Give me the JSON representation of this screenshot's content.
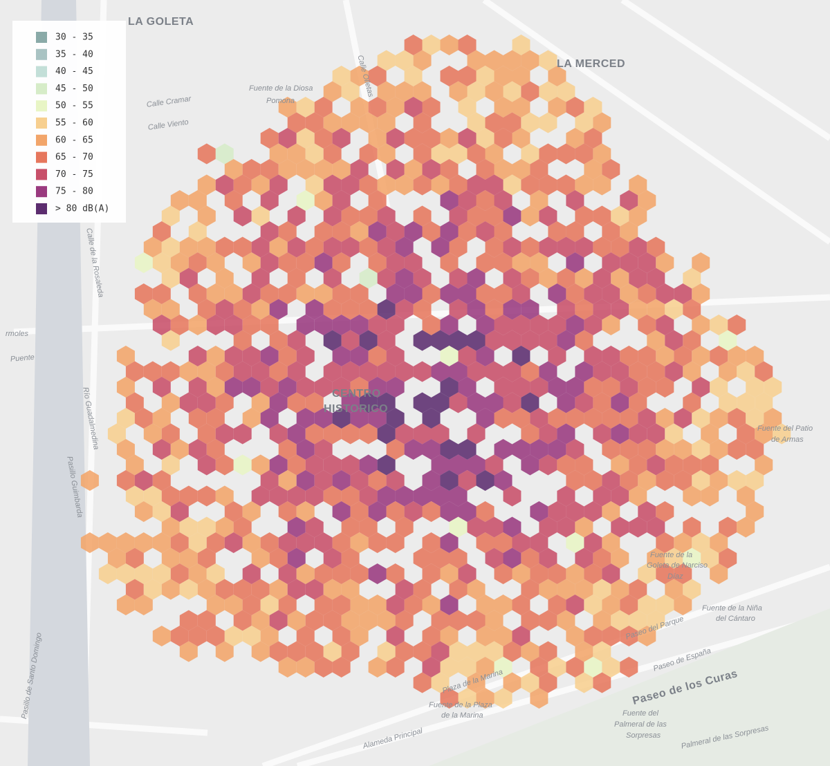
{
  "legend": {
    "items": [
      {
        "label": "30 - 35",
        "color": "#8aaaa8"
      },
      {
        "label": "35 - 40",
        "color": "#a9c3c3"
      },
      {
        "label": "40 - 45",
        "color": "#c3dfd8"
      },
      {
        "label": "45 - 50",
        "color": "#d6ecc8"
      },
      {
        "label": "50 - 55",
        "color": "#e8f5c5"
      },
      {
        "label": "55 - 60",
        "color": "#f7cf8f"
      },
      {
        "label": "60 - 65",
        "color": "#f2a56a"
      },
      {
        "label": "65 - 70",
        "color": "#e6775d"
      },
      {
        "label": "70 - 75",
        "color": "#c8506a"
      },
      {
        "label": "75 - 80",
        "color": "#9a3a7f"
      },
      {
        "label": "> 80 dB(A)",
        "color": "#5c2d6f"
      }
    ]
  },
  "map": {
    "labels": [
      "LA GOLETA",
      "LA MERCED",
      "CENTRO",
      "HISTORICO",
      "Fuente de la Diosa",
      "Pomona",
      "Calle Cramar",
      "Calle Viento",
      "Calle Olletas",
      "Fuente del Patio",
      "de Armas",
      "Fuente de la",
      "Goleta de Narciso",
      "Díaz",
      "Fuente de la Niña",
      "del Cántaro",
      "Paseo del Parque",
      "Paseo de España",
      "Paseo de los Curas",
      "Fuente del",
      "Palmeral de las",
      "Sorpresas",
      "Palmeral de las Sorpresas",
      "Plaza de la Marina",
      "Fuente de la Plaza",
      "de la Marina",
      "Alameda Principal",
      "Pasillo de Santo Domingo",
      "Pasillo Guimbarda",
      "Río Guadalmedina",
      "Calle de la Rosaleda",
      "Puente",
      "rmoles"
    ]
  }
}
